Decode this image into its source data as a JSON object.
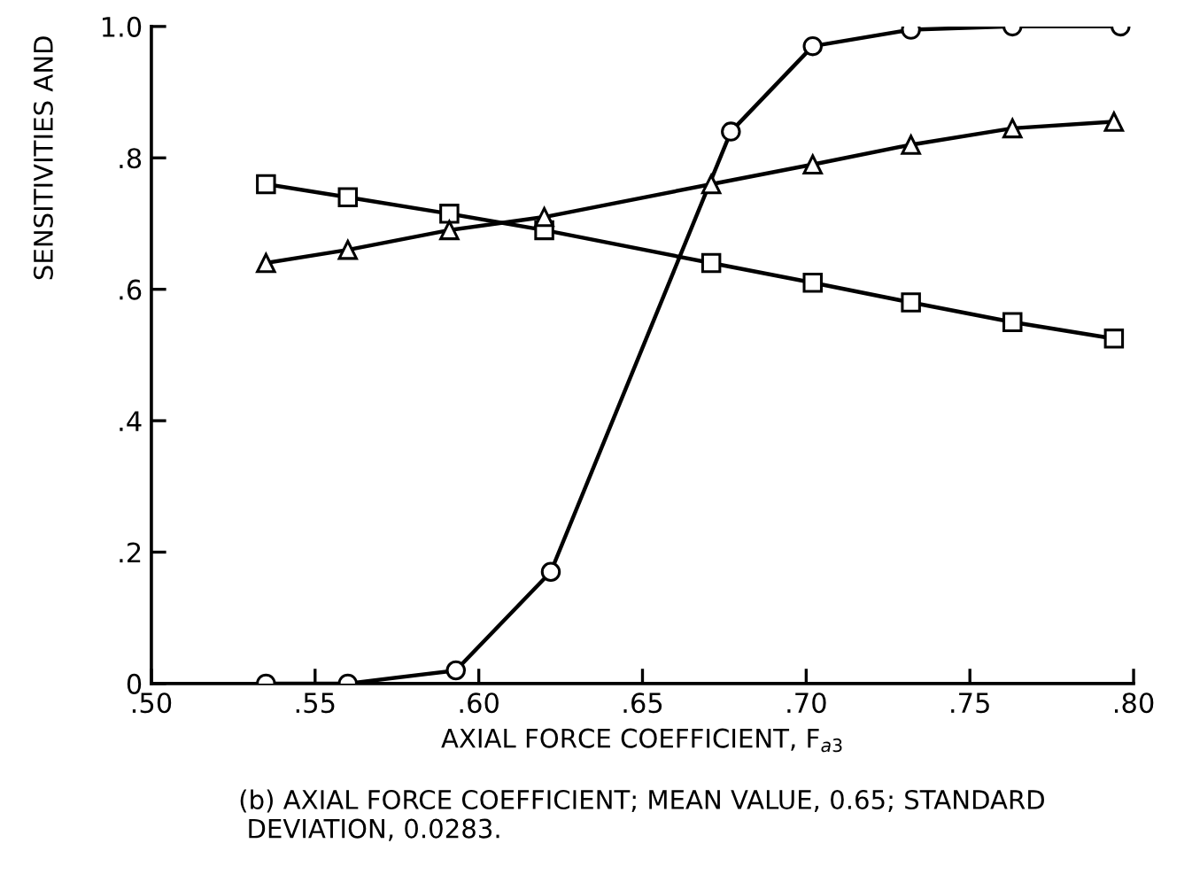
{
  "chart_data": {
    "type": "line",
    "xlabel": "AXIAL FORCE COEFFICIENT, F$_{a3}$",
    "ylabel": "SENSITIVITIES AND",
    "annotations": [
      "(b) AXIAL FORCE COEFFICIENT; MEAN VALUE, 0.65; STANDARD\n DEVIATION, 0.0283."
    ],
    "xlim": [
      0.5,
      0.8
    ],
    "ylim": [
      0,
      1.0
    ],
    "xticks": [
      {
        "value": 0.5,
        "label": ".50"
      },
      {
        "value": 0.55,
        "label": ".55"
      },
      {
        "value": 0.6,
        "label": ".60"
      },
      {
        "value": 0.65,
        "label": ".65"
      },
      {
        "value": 0.7,
        "label": ".70"
      },
      {
        "value": 0.75,
        "label": ".75"
      },
      {
        "value": 0.8,
        "label": ".80"
      }
    ],
    "yticks": [
      0,
      {
        "value": 0.2,
        "label": ".2"
      },
      {
        "value": 0.4,
        "label": ".4"
      },
      {
        "value": 0.6,
        "label": ".6"
      },
      {
        "value": 0.8,
        "label": ".8"
      },
      {
        "value": 1.0,
        "label": "1.0"
      }
    ],
    "grid": false,
    "series": [
      {
        "color": "#000000",
        "marker": "circle",
        "x": [
          0.535,
          0.56,
          0.593,
          0.622,
          0.677,
          0.702,
          0.732,
          0.763,
          0.796
        ],
        "values": [
          0,
          0,
          0.02,
          0.17,
          0.84,
          0.97,
          0.995,
          1.0,
          1.0
        ]
      },
      {
        "color": "#000000",
        "marker": "triangle",
        "x": [
          0.535,
          0.56,
          0.591,
          0.62,
          0.671,
          0.702,
          0.732,
          0.763,
          0.794
        ],
        "values": [
          0.64,
          0.66,
          0.69,
          0.71,
          0.76,
          0.79,
          0.82,
          0.845,
          0.855
        ]
      },
      {
        "color": "#000000",
        "marker": "square",
        "x": [
          0.535,
          0.56,
          0.591,
          0.62,
          0.671,
          0.702,
          0.732,
          0.763,
          0.794
        ],
        "values": [
          0.76,
          0.74,
          0.715,
          0.69,
          0.64,
          0.61,
          0.58,
          0.55,
          0.525
        ]
      }
    ]
  }
}
